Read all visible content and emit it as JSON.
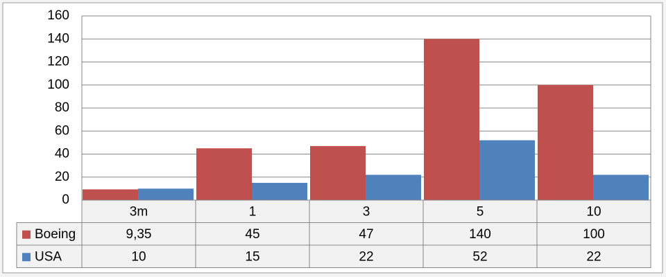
{
  "chart_data": {
    "type": "bar",
    "categories": [
      "3m",
      "1",
      "3",
      "5",
      "10"
    ],
    "series": [
      {
        "name": "Boeing",
        "color": "#c0504d",
        "values": [
          9.35,
          45,
          47,
          140,
          100
        ],
        "value_labels": [
          "9,35",
          "45",
          "47",
          "140",
          "100"
        ]
      },
      {
        "name": "USA",
        "color": "#4f81bd",
        "values": [
          10,
          15,
          22,
          52,
          22
        ]
      }
    ],
    "ylim": [
      0,
      160
    ],
    "yticks": [
      0,
      20,
      40,
      60,
      80,
      100,
      120,
      140,
      160
    ],
    "grid": true,
    "legend": "data-table"
  }
}
